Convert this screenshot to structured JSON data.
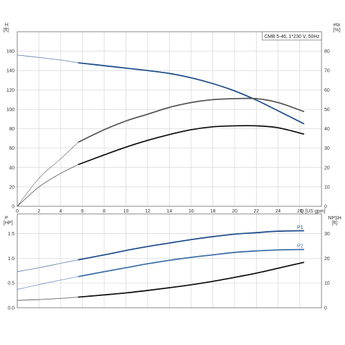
{
  "chart_data": [
    {
      "type": "line",
      "panel": "top",
      "legend_text": "CMB 5-46, 1*230 V, 50Hz",
      "legend_placement": "top-right",
      "grid": true,
      "xlabel": "Q [US gpm]",
      "ylabel_left": "H",
      "ylabel_left_unit": "[ft]",
      "ylabel_right": "eta",
      "ylabel_right_unit": "[%]",
      "xlim": [
        0,
        28
      ],
      "xticks": [
        "0",
        "2",
        "4",
        "6",
        "8",
        "10",
        "12",
        "14",
        "16",
        "18",
        "20",
        "22",
        "24",
        "26"
      ],
      "ylim_left": [
        0,
        180
      ],
      "yticks_left": [
        "0",
        "20",
        "40",
        "60",
        "80",
        "100",
        "120",
        "140",
        "160"
      ],
      "ylim_right": [
        0,
        90
      ],
      "yticks_right": [
        "0",
        "10",
        "20",
        "30",
        "40",
        "50",
        "60",
        "70",
        "80"
      ],
      "series": [
        {
          "key": "head",
          "axis": "left",
          "color": "#1f4e8c",
          "points": [
            [
              0,
              156
            ],
            [
              2,
              153.5
            ],
            [
              4,
              150.8
            ],
            [
              5.6,
              148
            ],
            [
              8,
              145
            ],
            [
              10,
              142.5
            ],
            [
              12,
              140
            ],
            [
              14,
              137
            ],
            [
              16,
              132.5
            ],
            [
              18,
              126.5
            ],
            [
              20,
              119
            ],
            [
              22,
              109.5
            ],
            [
              24,
              98.5
            ],
            [
              26.4,
              85
            ]
          ],
          "faint_until_x": 5.6
        },
        {
          "key": "eta-1",
          "axis": "right",
          "color": "#555555",
          "points": [
            [
              0,
              0
            ],
            [
              2,
              14.5
            ],
            [
              4,
              24.5
            ],
            [
              5.6,
              33
            ],
            [
              8,
              39.5
            ],
            [
              10,
              44
            ],
            [
              12,
              47.5
            ],
            [
              14,
              51
            ],
            [
              16,
              53.5
            ],
            [
              18,
              55
            ],
            [
              20,
              55.5
            ],
            [
              22,
              55.5
            ],
            [
              24,
              53.5
            ],
            [
              26.4,
              48.8
            ]
          ],
          "faint_until_x": 5.6
        },
        {
          "key": "eta-2",
          "axis": "right",
          "color": "#111111",
          "points": [
            [
              0,
              0
            ],
            [
              2,
              10
            ],
            [
              4,
              17
            ],
            [
              5.6,
              21.5
            ],
            [
              8,
              26.5
            ],
            [
              10,
              30.5
            ],
            [
              12,
              34
            ],
            [
              14,
              37
            ],
            [
              16,
              39.5
            ],
            [
              18,
              41
            ],
            [
              20,
              41.5
            ],
            [
              22,
              41.5
            ],
            [
              24,
              40.5
            ],
            [
              26.4,
              37.2
            ]
          ],
          "faint_until_x": 5.6
        }
      ]
    },
    {
      "type": "line",
      "panel": "bottom",
      "grid": true,
      "ylabel_left": "P",
      "ylabel_left_unit": "[HP]",
      "ylabel_right": "NPSH",
      "ylabel_right_unit": "[ft]",
      "xlim": [
        0,
        28
      ],
      "xticks": [
        "0",
        "2",
        "4",
        "6",
        "8",
        "10",
        "12",
        "14",
        "16",
        "18",
        "20",
        "22",
        "24",
        "26"
      ],
      "ylim_left": [
        0,
        1.9
      ],
      "yticks_left": [
        "0.0",
        "0.5",
        "1.0",
        "1.5"
      ],
      "ylim_right": [
        0,
        38
      ],
      "yticks_right": [
        "0",
        "10",
        "20",
        "30"
      ],
      "series": [
        {
          "key": "p1",
          "name": "P1",
          "axis": "left",
          "color": "#1f4e8c",
          "points": [
            [
              0,
              0.73
            ],
            [
              2,
              0.81
            ],
            [
              4,
              0.9
            ],
            [
              5.6,
              0.97
            ],
            [
              8,
              1.07
            ],
            [
              10,
              1.16
            ],
            [
              12,
              1.24
            ],
            [
              14,
              1.31
            ],
            [
              16,
              1.38
            ],
            [
              18,
              1.44
            ],
            [
              20,
              1.49
            ],
            [
              22,
              1.52
            ],
            [
              24,
              1.55
            ],
            [
              26.4,
              1.56
            ]
          ],
          "faint_until_x": 5.6
        },
        {
          "key": "p2",
          "name": "P2",
          "axis": "left",
          "color": "#3d6fa8",
          "points": [
            [
              0,
              0.37
            ],
            [
              2,
              0.47
            ],
            [
              4,
              0.56
            ],
            [
              5.6,
              0.63
            ],
            [
              8,
              0.73
            ],
            [
              10,
              0.81
            ],
            [
              12,
              0.89
            ],
            [
              14,
              0.96
            ],
            [
              16,
              1.02
            ],
            [
              18,
              1.07
            ],
            [
              20,
              1.12
            ],
            [
              22,
              1.15
            ],
            [
              24,
              1.17
            ],
            [
              26.4,
              1.18
            ]
          ],
          "faint_until_x": 5.6
        },
        {
          "key": "npsh",
          "axis": "right",
          "color": "#111111",
          "points": [
            [
              0,
              3.0
            ],
            [
              2,
              3.3
            ],
            [
              4,
              3.8
            ],
            [
              5.6,
              4.3
            ],
            [
              8,
              5.2
            ],
            [
              10,
              6.0
            ],
            [
              12,
              7.0
            ],
            [
              14,
              8.1
            ],
            [
              16,
              9.3
            ],
            [
              18,
              10.7
            ],
            [
              20,
              12.3
            ],
            [
              22,
              14.0
            ],
            [
              24,
              16.0
            ],
            [
              26.4,
              18.4
            ]
          ],
          "faint_until_x": 5.6
        }
      ]
    }
  ]
}
